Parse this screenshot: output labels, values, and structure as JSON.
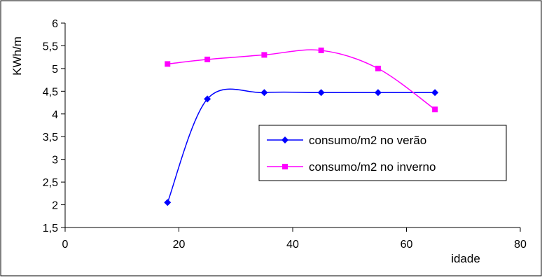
{
  "chart_data": {
    "type": "line",
    "title": "",
    "xlabel": "idade",
    "ylabel": "KWh/m",
    "xlim": [
      0,
      80
    ],
    "ylim": [
      1.5,
      6
    ],
    "x_ticks": [
      "0",
      "20",
      "40",
      "60",
      "80"
    ],
    "y_ticks": [
      "1,5",
      "2",
      "2,5",
      "3",
      "3,5",
      "4",
      "4,5",
      "5",
      "5,5",
      "6"
    ],
    "x_tick_values": [
      0,
      20,
      40,
      60,
      80
    ],
    "y_tick_values": [
      1.5,
      2,
      2.5,
      3,
      3.5,
      4,
      4.5,
      5,
      5.5,
      6
    ],
    "grid": false,
    "smoothed": true,
    "legend_position": "center-right",
    "series": [
      {
        "name": "consumo/m2 no verão",
        "color": "#0000ff",
        "marker": "diamond",
        "x": [
          18,
          25,
          35,
          45,
          55,
          65
        ],
        "values": [
          2.05,
          4.33,
          4.47,
          4.47,
          4.47,
          4.47
        ]
      },
      {
        "name": "consumo/m2 no inverno",
        "color": "#ff00ff",
        "marker": "square",
        "x": [
          18,
          25,
          35,
          45,
          55,
          65
        ],
        "values": [
          5.1,
          5.2,
          5.3,
          5.4,
          5.0,
          4.1
        ]
      }
    ]
  }
}
